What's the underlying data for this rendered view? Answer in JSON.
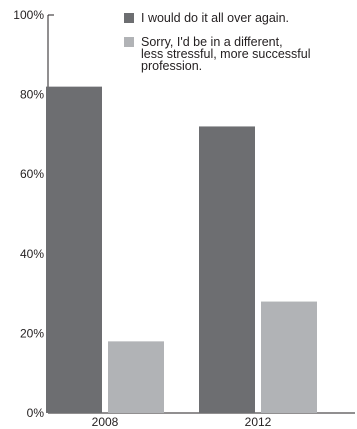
{
  "chart_data": {
    "type": "bar",
    "categories": [
      "2008",
      "2012"
    ],
    "series": [
      {
        "name": "I would do it all over again.",
        "values": [
          82,
          72
        ],
        "color": "#6d6e71"
      },
      {
        "name": "Sorry, I'd be in a different, less stressful, more successful profession.",
        "values": [
          18,
          28
        ],
        "color": "#b1b3b6"
      }
    ],
    "y_ticks": [
      "100%",
      "80%",
      "60%",
      "40%",
      "20%",
      "0%"
    ],
    "ylim": [
      0,
      100
    ],
    "grid": false,
    "legend_position": "top-right",
    "legend": [
      {
        "lines": [
          "I would do it all over again."
        ]
      },
      {
        "lines": [
          "Sorry, I'd be in a different,",
          "less stressful, more successful",
          "profession."
        ]
      }
    ]
  }
}
